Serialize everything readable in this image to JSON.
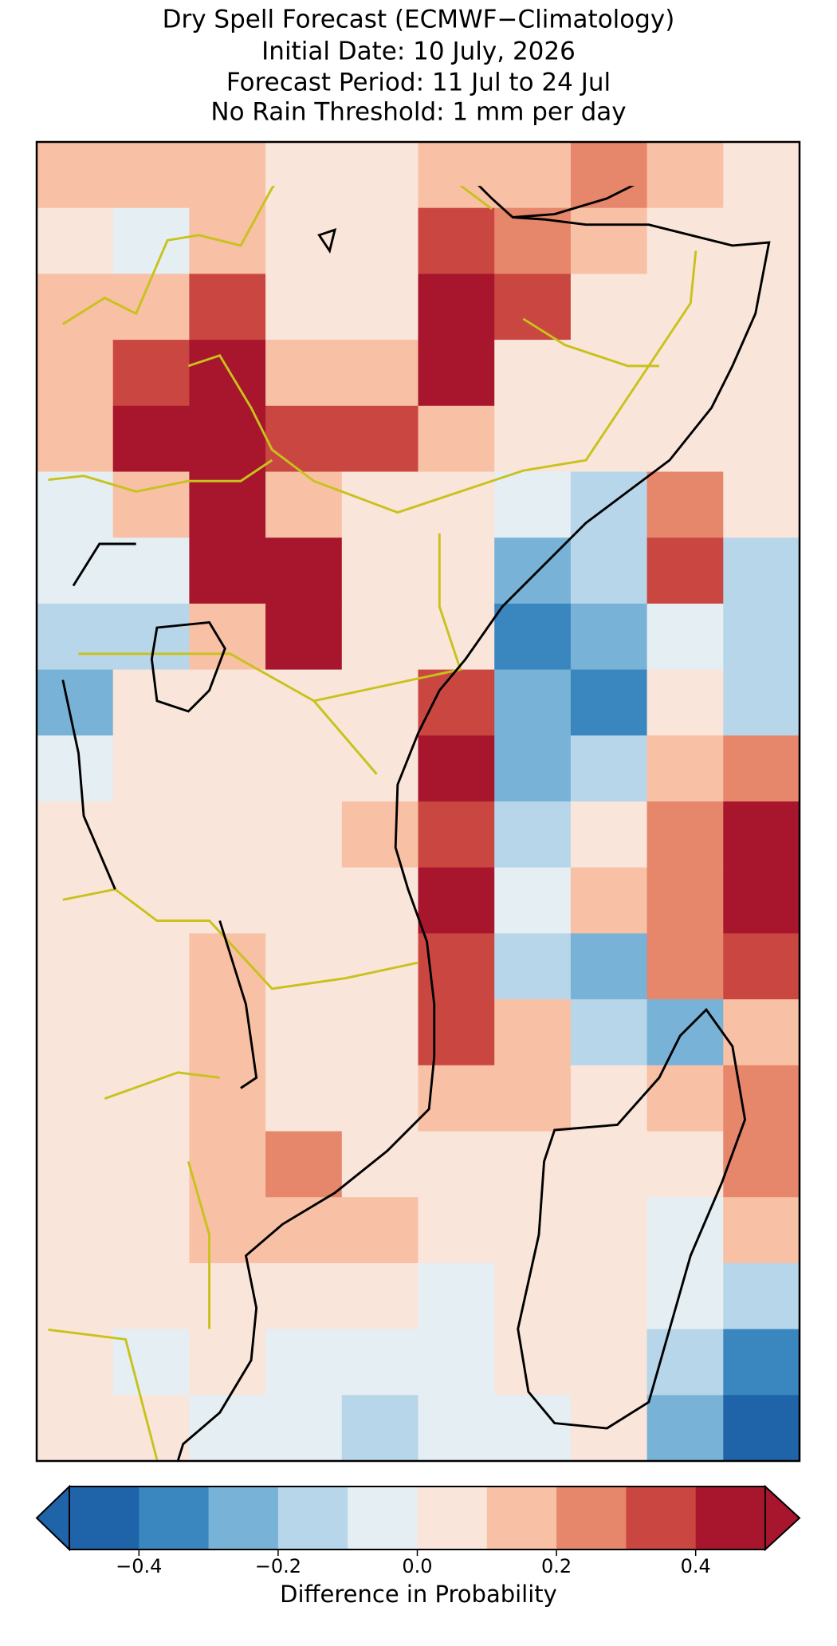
{
  "chart_data": {
    "type": "heatmap",
    "title": [
      "Dry Spell Forecast (ECMWF−Climatology)",
      "Initial Date: 10 July, 2026",
      "Forecast Period: 11 Jul to 24 Jul",
      "No Rain Threshold: 1 mm per day"
    ],
    "z": [
      [
        0.15,
        0.15,
        0.15,
        0.05,
        0.05,
        0.15,
        0.15,
        0.25,
        0.15,
        0.05
      ],
      [
        0.05,
        -0.05,
        0.15,
        0.05,
        0.05,
        0.35,
        0.25,
        0.15,
        0.05,
        0.05
      ],
      [
        0.15,
        0.15,
        0.35,
        0.05,
        0.05,
        0.45,
        0.35,
        0.05,
        0.05,
        0.05
      ],
      [
        0.15,
        0.35,
        0.45,
        0.15,
        0.15,
        0.45,
        0.05,
        0.05,
        0.05,
        0.05
      ],
      [
        0.15,
        0.45,
        0.45,
        0.35,
        0.35,
        0.15,
        0.05,
        0.05,
        0.05,
        0.05
      ],
      [
        -0.05,
        0.15,
        0.45,
        0.15,
        0.05,
        0.05,
        -0.05,
        -0.15,
        0.25,
        0.05
      ],
      [
        -0.05,
        -0.05,
        0.45,
        0.45,
        0.05,
        0.05,
        -0.25,
        -0.15,
        0.35,
        -0.15
      ],
      [
        -0.15,
        -0.15,
        0.15,
        0.45,
        0.05,
        0.05,
        -0.35,
        -0.25,
        -0.05,
        -0.15
      ],
      [
        -0.25,
        0.05,
        0.05,
        0.05,
        0.05,
        0.35,
        -0.25,
        -0.35,
        0.05,
        -0.15
      ],
      [
        -0.05,
        0.05,
        0.05,
        0.05,
        0.05,
        0.45,
        -0.25,
        -0.15,
        0.15,
        0.25
      ],
      [
        0.05,
        0.05,
        0.05,
        0.05,
        0.15,
        0.35,
        -0.15,
        0.05,
        0.25,
        0.45
      ],
      [
        0.05,
        0.05,
        0.05,
        0.05,
        0.05,
        0.45,
        -0.05,
        0.15,
        0.25,
        0.45
      ],
      [
        0.05,
        0.05,
        0.15,
        0.05,
        0.05,
        0.35,
        -0.15,
        -0.25,
        0.25,
        0.35
      ],
      [
        0.05,
        0.05,
        0.15,
        0.05,
        0.05,
        0.35,
        0.15,
        -0.15,
        -0.25,
        0.15
      ],
      [
        0.05,
        0.05,
        0.15,
        0.05,
        0.05,
        0.15,
        0.15,
        0.05,
        0.15,
        0.25
      ],
      [
        0.05,
        0.05,
        0.15,
        0.25,
        0.05,
        0.05,
        0.05,
        0.05,
        0.05,
        0.25
      ],
      [
        0.05,
        0.05,
        0.15,
        0.15,
        0.15,
        0.05,
        0.05,
        0.05,
        -0.05,
        0.15
      ],
      [
        0.05,
        0.05,
        0.05,
        0.05,
        0.05,
        -0.05,
        0.05,
        0.05,
        -0.05,
        -0.15
      ],
      [
        0.05,
        -0.05,
        0.05,
        -0.05,
        -0.05,
        -0.05,
        0.05,
        0.05,
        -0.15,
        -0.35
      ],
      [
        0.05,
        0.05,
        -0.05,
        -0.05,
        -0.15,
        -0.05,
        -0.05,
        0.05,
        -0.25,
        -0.45
      ]
    ],
    "colorbar": {
      "label": "Difference in Probability",
      "extend": "both",
      "boundaries": [
        -0.5,
        -0.4,
        -0.3,
        -0.2,
        -0.1,
        0,
        0.1,
        0.2,
        0.3,
        0.4,
        0.5
      ],
      "colors": [
        "#1f63a8",
        "#3a86bf",
        "#78b3d7",
        "#b8d6e9",
        "#e5eef3",
        "#f9e5da",
        "#f8c0a5",
        "#e6866a",
        "#ca4741",
        "#a7162d"
      ],
      "ticks": [
        {
          "value": -0.4,
          "label": "−0.4"
        },
        {
          "value": -0.2,
          "label": "−0.2"
        },
        {
          "value": 0,
          "label": "0.0"
        },
        0.2,
        0.4
      ]
    }
  }
}
